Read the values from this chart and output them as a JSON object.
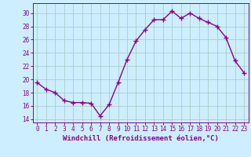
{
  "x": [
    0,
    1,
    2,
    3,
    4,
    5,
    6,
    7,
    8,
    9,
    10,
    11,
    12,
    13,
    14,
    15,
    16,
    17,
    18,
    19,
    20,
    21,
    22,
    23
  ],
  "y": [
    19.5,
    18.5,
    18.0,
    16.8,
    16.5,
    16.5,
    16.4,
    14.5,
    16.2,
    19.5,
    23.0,
    25.8,
    27.5,
    29.0,
    29.0,
    30.3,
    29.2,
    30.0,
    29.2,
    28.6,
    28.0,
    26.3,
    22.8,
    21.0
  ],
  "line_color": "#8B008B",
  "marker": "+",
  "marker_size": 4,
  "marker_lw": 1.0,
  "line_width": 1.0,
  "bg_color": "#cceeff",
  "grid_color": "#aacccc",
  "xlabel": "Windchill (Refroidissement éolien,°C)",
  "xlim": [
    -0.5,
    23.5
  ],
  "ylim": [
    13.5,
    31.5
  ],
  "yticks": [
    14,
    16,
    18,
    20,
    22,
    24,
    26,
    28,
    30
  ],
  "xticks": [
    0,
    1,
    2,
    3,
    4,
    5,
    6,
    7,
    8,
    9,
    10,
    11,
    12,
    13,
    14,
    15,
    16,
    17,
    18,
    19,
    20,
    21,
    22,
    23
  ],
  "tick_color": "#8B008B",
  "tick_label_size": 5.5,
  "xlabel_size": 6.5,
  "spine_color": "#8B008B"
}
